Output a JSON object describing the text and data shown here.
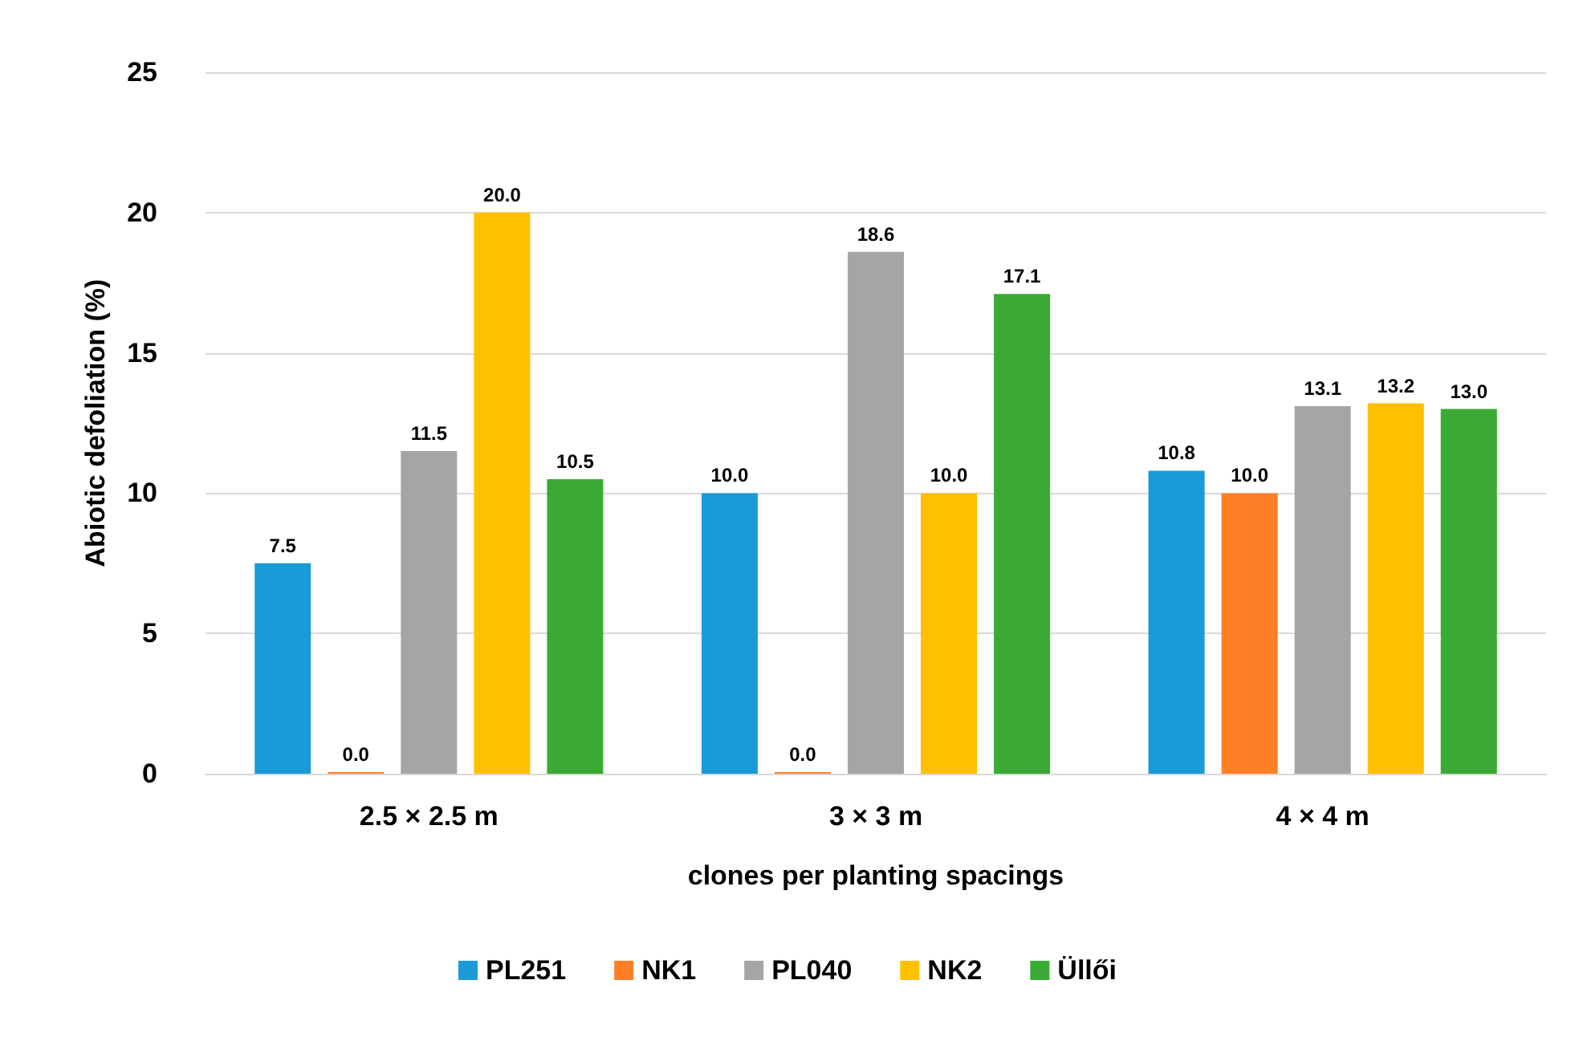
{
  "chart_data": {
    "type": "bar",
    "xlabel": "clones per planting spacings",
    "ylabel": "Abiotic defoliation (%)",
    "categories": [
      "2.5 × 2.5 m",
      "3 × 3 m",
      "4 × 4 m"
    ],
    "series": [
      {
        "name": "PL251",
        "color": "#1a9bd7",
        "values": [
          7.5,
          10,
          10.8
        ],
        "value_labels": [
          "7.5",
          "10.0",
          "10.8"
        ]
      },
      {
        "name": "NK1",
        "color": "#ff7f27",
        "values": [
          0,
          0,
          10
        ],
        "value_labels": [
          "0.0",
          "0.0",
          "10.0"
        ]
      },
      {
        "name": "PL040",
        "color": "#a5a5a5",
        "values": [
          11.5,
          18.6,
          13.1
        ],
        "value_labels": [
          "11.5",
          "18.6",
          "13.1"
        ]
      },
      {
        "name": "NK2",
        "color": "#ffc000",
        "values": [
          20,
          10,
          13.2
        ],
        "value_labels": [
          "20.0",
          "10.0",
          "13.2"
        ]
      },
      {
        "name": "Üllői",
        "color": "#3aaa35",
        "values": [
          10.5,
          17.1,
          13
        ],
        "value_labels": [
          "10.5",
          "17.1",
          "13.0"
        ]
      }
    ],
    "ylim": [
      0,
      25
    ],
    "yticks": [
      0,
      5,
      10,
      15,
      20,
      25
    ],
    "grid": "y",
    "legend": "bottom"
  }
}
